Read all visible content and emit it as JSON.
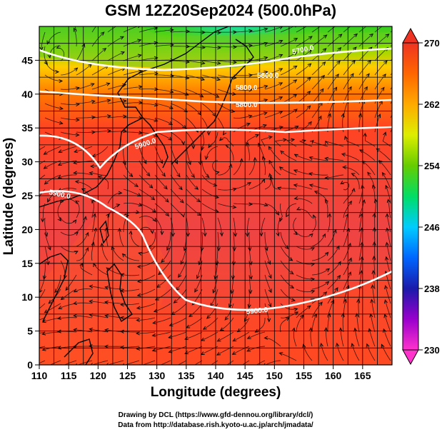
{
  "title": "GSM 12Z20Sep2024 (500.0hPa)",
  "xlabel": "Longitude (degrees)",
  "ylabel": "Latitude  (degrees)",
  "footer": {
    "line1": "Drawing by DCL (https://www.gfd-dennou.org/library/dcl/)",
    "line2": "Data from http://database.rish.kyoto-u.ac.jp/arch/jmadata/"
  },
  "chart_data": {
    "type": "heatmap",
    "xlim": [
      110,
      170
    ],
    "ylim": [
      0,
      50
    ],
    "xticks": [
      "110",
      "115",
      "120",
      "125",
      "130",
      "135",
      "140",
      "145",
      "150",
      "155",
      "160",
      "165"
    ],
    "yticks": [
      "0",
      "5",
      "10",
      "15",
      "20",
      "25",
      "30",
      "35",
      "40",
      "45"
    ],
    "grid": true,
    "colorbar": {
      "ticks": [
        "230",
        "238",
        "246",
        "254",
        "262",
        "270"
      ],
      "range": [
        230,
        270
      ],
      "colors": [
        "#ff33cc",
        "#9900cc",
        "#1a1aaa",
        "#0066ff",
        "#00ccff",
        "#00dd66",
        "#66cc00",
        "#ddee00",
        "#ffcc00",
        "#ff9900",
        "#ff6600",
        "#ff4422",
        "#ee3322"
      ]
    },
    "contours": [
      {
        "label": "5700.0"
      },
      {
        "label": "5800.0"
      },
      {
        "label": "5900.0"
      }
    ]
  },
  "colors": {
    "warm": "#ff4a2a",
    "field": "#ee4b3a",
    "cold": "#00ccff",
    "green": "#44cc22"
  }
}
